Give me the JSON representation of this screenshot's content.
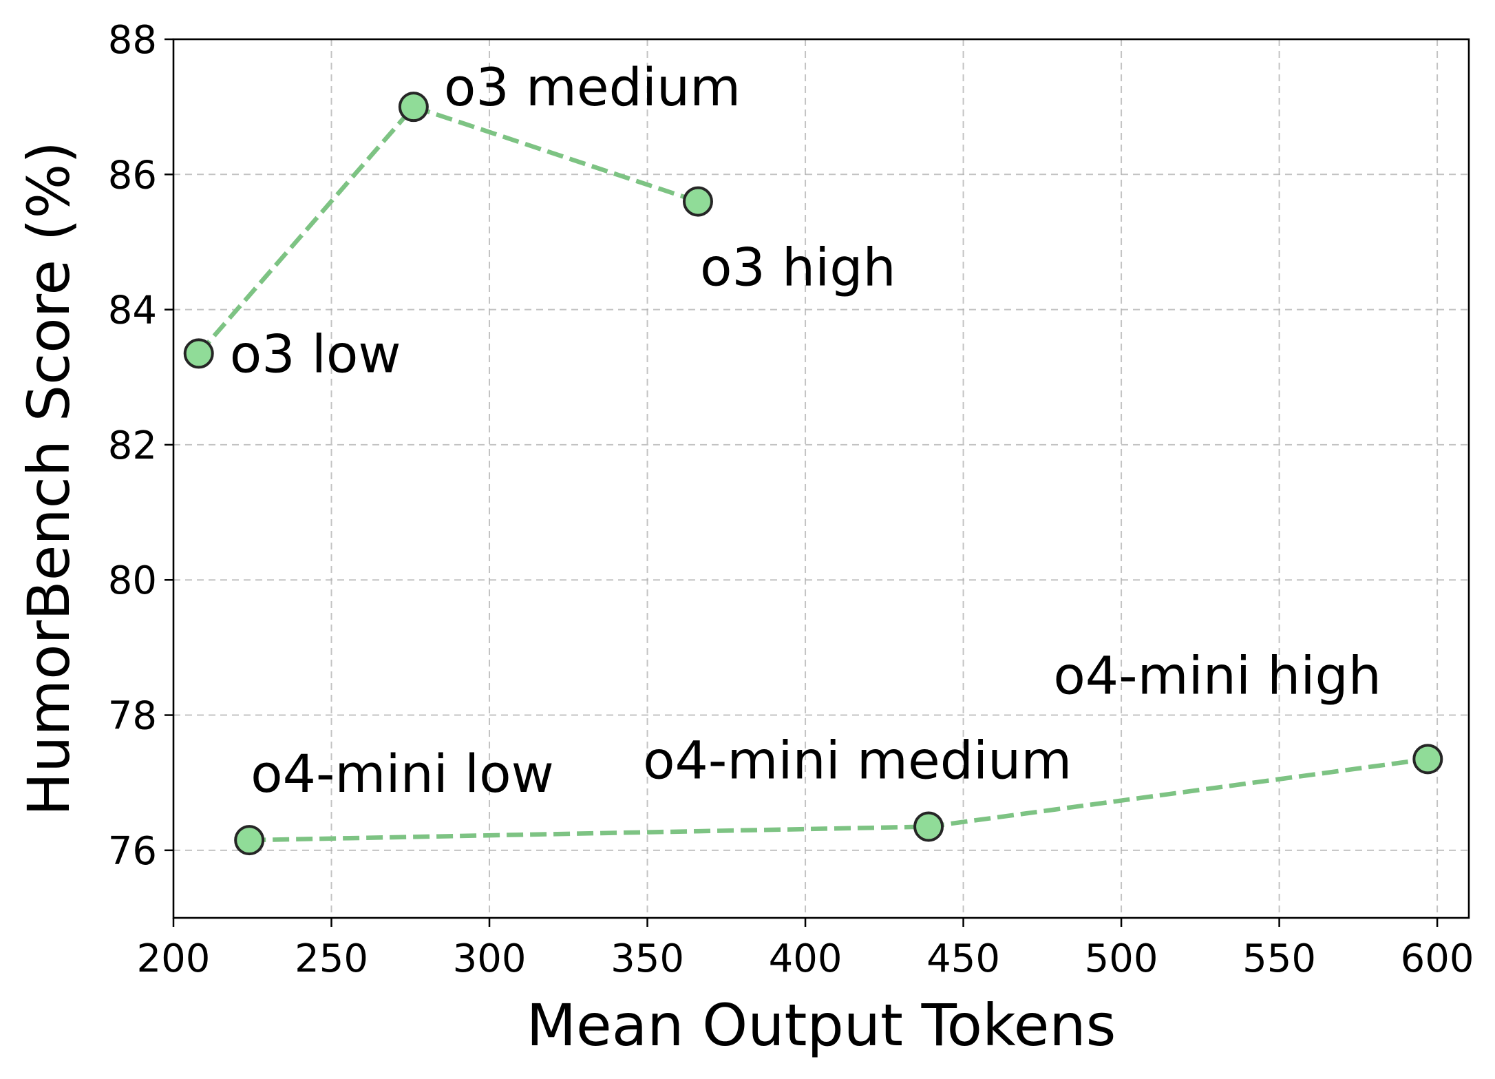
{
  "chart_data": {
    "type": "line",
    "title": "",
    "xlabel": "Mean Output Tokens",
    "ylabel": "HumorBench Score (%)",
    "xlim": [
      200,
      610
    ],
    "ylim": [
      75,
      88
    ],
    "x_ticks": [
      200,
      250,
      300,
      350,
      400,
      450,
      500,
      550,
      600
    ],
    "y_ticks": [
      76,
      78,
      80,
      82,
      84,
      86,
      88
    ],
    "grid": true,
    "series": [
      {
        "color": "#7dc383",
        "marker_color": "#90dc98",
        "points": [
          {
            "x": 208,
            "y": 83.35,
            "label": "o3 low"
          },
          {
            "x": 276,
            "y": 87.0,
            "label": "o3 medium"
          },
          {
            "x": 366,
            "y": 85.6,
            "label": "o3 high"
          }
        ]
      },
      {
        "color": "#7dc383",
        "marker_color": "#90dc98",
        "points": [
          {
            "x": 224,
            "y": 76.15,
            "label": "o4-mini low"
          },
          {
            "x": 439,
            "y": 76.35,
            "label": "o4-mini medium"
          },
          {
            "x": 597,
            "y": 77.35,
            "label": "o4-mini high"
          }
        ]
      }
    ]
  }
}
